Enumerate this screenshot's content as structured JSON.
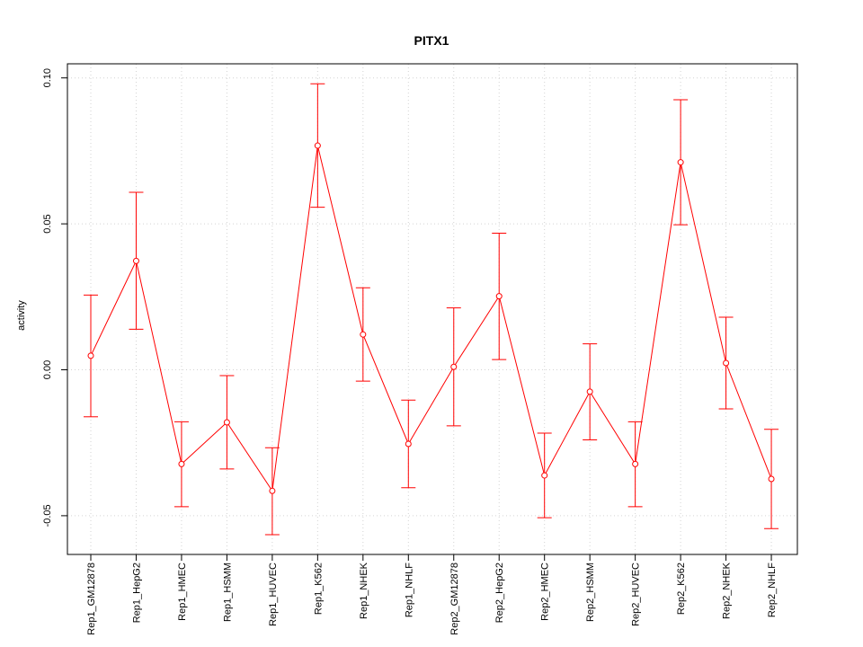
{
  "chart_data": {
    "type": "line",
    "title": "PITX1",
    "xlabel": "",
    "ylabel": "activity",
    "ylim": [
      -0.063,
      0.105
    ],
    "yticks": [
      -0.05,
      0.0,
      0.05,
      0.1
    ],
    "ytick_labels": [
      "-0.05",
      "0.00",
      "0.05",
      "0.10"
    ],
    "grid": true,
    "categories": [
      "Rep1_GM12878",
      "Rep1_HepG2",
      "Rep1_HMEC",
      "Rep1_HSMM",
      "Rep1_HUVEC",
      "Rep1_K562",
      "Rep1_NHEK",
      "Rep1_NHLF",
      "Rep2_GM12878",
      "Rep2_HepG2",
      "Rep2_HMEC",
      "Rep2_HSMM",
      "Rep2_HUVEC",
      "Rep2_K562",
      "Rep2_NHEK",
      "Rep2_NHLF"
    ],
    "series": [
      {
        "name": "PITX1",
        "color": "#ff0000",
        "values": [
          0.0048,
          0.0373,
          -0.0323,
          -0.018,
          -0.0415,
          0.0768,
          0.0121,
          -0.0254,
          0.001,
          0.0252,
          -0.0362,
          -0.0075,
          -0.0323,
          0.0711,
          0.0023,
          -0.0374
        ],
        "err_low": [
          -0.0161,
          0.0139,
          -0.0469,
          -0.034,
          -0.0565,
          0.0557,
          -0.0039,
          -0.0404,
          -0.0192,
          0.0035,
          -0.0507,
          -0.024,
          -0.0469,
          0.0497,
          -0.0134,
          -0.0544
        ],
        "err_high": [
          0.0256,
          0.0608,
          -0.0178,
          -0.002,
          -0.0267,
          0.098,
          0.0281,
          -0.0104,
          0.0212,
          0.0468,
          -0.0217,
          0.0089,
          -0.0178,
          0.0925,
          0.018,
          -0.0204
        ]
      }
    ]
  }
}
